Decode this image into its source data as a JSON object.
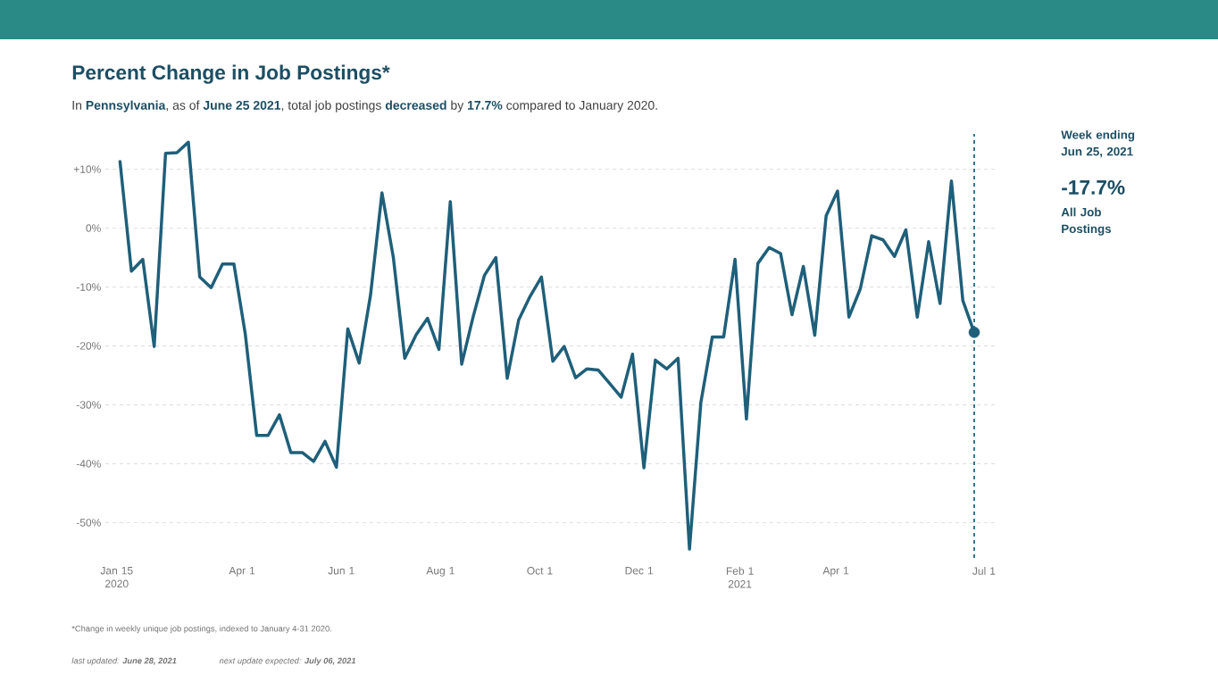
{
  "chart_data": {
    "type": "line",
    "title": "Percent Change in Job Postings*",
    "subtitle": "In **Pennsylvania**, as of **June 25 2021**, total job postings **decreased** by **17.7%** compared to January 2020.",
    "x": [
      "2020-01-17",
      "2020-01-24",
      "2020-01-31",
      "2020-02-07",
      "2020-02-14",
      "2020-02-21",
      "2020-02-28",
      "2020-03-06",
      "2020-03-13",
      "2020-03-20",
      "2020-03-27",
      "2020-04-03",
      "2020-04-10",
      "2020-04-17",
      "2020-04-24",
      "2020-05-01",
      "2020-05-08",
      "2020-05-15",
      "2020-05-22",
      "2020-05-29",
      "2020-06-05",
      "2020-06-12",
      "2020-06-19",
      "2020-06-26",
      "2020-07-03",
      "2020-07-10",
      "2020-07-17",
      "2020-07-24",
      "2020-07-31",
      "2020-08-07",
      "2020-08-14",
      "2020-08-21",
      "2020-08-28",
      "2020-09-04",
      "2020-09-11",
      "2020-09-18",
      "2020-09-25",
      "2020-10-02",
      "2020-10-09",
      "2020-10-16",
      "2020-10-23",
      "2020-10-30",
      "2020-11-06",
      "2020-11-13",
      "2020-11-20",
      "2020-11-27",
      "2020-12-04",
      "2020-12-11",
      "2020-12-18",
      "2020-12-25",
      "2021-01-01",
      "2021-01-08",
      "2021-01-15",
      "2021-01-22",
      "2021-01-29",
      "2021-02-05",
      "2021-02-12",
      "2021-02-19",
      "2021-02-26",
      "2021-03-05",
      "2021-03-12",
      "2021-03-19",
      "2021-03-26",
      "2021-04-02",
      "2021-04-09",
      "2021-04-16",
      "2021-04-23",
      "2021-04-30",
      "2021-05-07",
      "2021-05-14",
      "2021-05-21",
      "2021-05-28",
      "2021-06-04",
      "2021-06-11",
      "2021-06-18",
      "2021-06-25"
    ],
    "series": [
      {
        "color": "#1f5f7a",
        "values": [
          11.3,
          -7.3,
          -5.3,
          -20.1,
          12.7,
          12.8,
          14.6,
          -8.3,
          -10.1,
          -6.1,
          -6.1,
          -18,
          -35.2,
          -35.2,
          -31.7,
          -38.1,
          -38.1,
          -39.6,
          -36.2,
          -40.6,
          -17.1,
          -22.9,
          -11.3,
          6.0,
          -5.0,
          -22.1,
          -18.1,
          -15.3,
          -20.6,
          4.5,
          -23.1,
          -15.1,
          -8.0,
          -5.0,
          -25.5,
          -15.6,
          -11.6,
          -8.3,
          -22.6,
          -20.1,
          -25.4,
          -23.9,
          -24.1,
          -26.4,
          -28.7,
          -21.4,
          -40.7,
          -22.4,
          -23.9,
          -22.1,
          -54.5,
          -29.6,
          -18.5,
          -18.5,
          -5.3,
          -32.4,
          -6.0,
          -3.3,
          -4.3,
          -14.7,
          -6.5,
          -18.2,
          2.1,
          6.3,
          -15.1,
          -10.3,
          -1.3,
          -2.0,
          -4.8,
          -0.3,
          -15.1,
          -2.3,
          -12.8,
          8.0,
          -12.3,
          -17.7
        ]
      },
      {
        "type": "scatter",
        "marker": "circle",
        "color": "#1f5f7a",
        "x": [
          "2021-06-25"
        ],
        "values": [
          -17.7
        ]
      }
    ],
    "xlim": [
      "2020-01-08",
      "2021-07-08"
    ],
    "xticks": [
      {
        "value": "2020-01-15",
        "label": "Jan 15 2020"
      },
      {
        "value": "2020-04-01",
        "label": "Apr 1"
      },
      {
        "value": "2020-06-01",
        "label": "Jun 1"
      },
      {
        "value": "2020-08-01",
        "label": "Aug 1"
      },
      {
        "value": "2020-10-01",
        "label": "Oct 1"
      },
      {
        "value": "2020-12-01",
        "label": "Dec 1"
      },
      {
        "value": "2021-02-01",
        "label": "Feb 1 2021"
      },
      {
        "value": "2021-04-01",
        "label": "Apr 1"
      },
      {
        "value": "2021-07-01",
        "label": "Jul 1"
      }
    ],
    "ylim": [
      -56,
      16
    ],
    "yticks": [
      {
        "value": 10,
        "label": "+10%"
      },
      {
        "value": 0,
        "label": "0%"
      },
      {
        "value": -10,
        "label": "-10%"
      },
      {
        "value": -20,
        "label": "-20%"
      },
      {
        "value": -30,
        "label": "-30%"
      },
      {
        "value": -40,
        "label": "-40%"
      },
      {
        "value": -50,
        "label": "-50%"
      }
    ],
    "grid": "y",
    "ref_lines": [
      {
        "axis": "x",
        "value": "2021-06-25",
        "color": "#1f5f7a",
        "line_style": "dashed"
      }
    ],
    "annotations": [
      "Week ending Jun 25, 2021",
      "-17.7%",
      "All Job Postings",
      "*Change in weekly unique job postings, indexed to January 4-31 2020.",
      "last updated: **June 28, 2021**",
      "next update expected: **July 06, 2021**"
    ]
  }
}
